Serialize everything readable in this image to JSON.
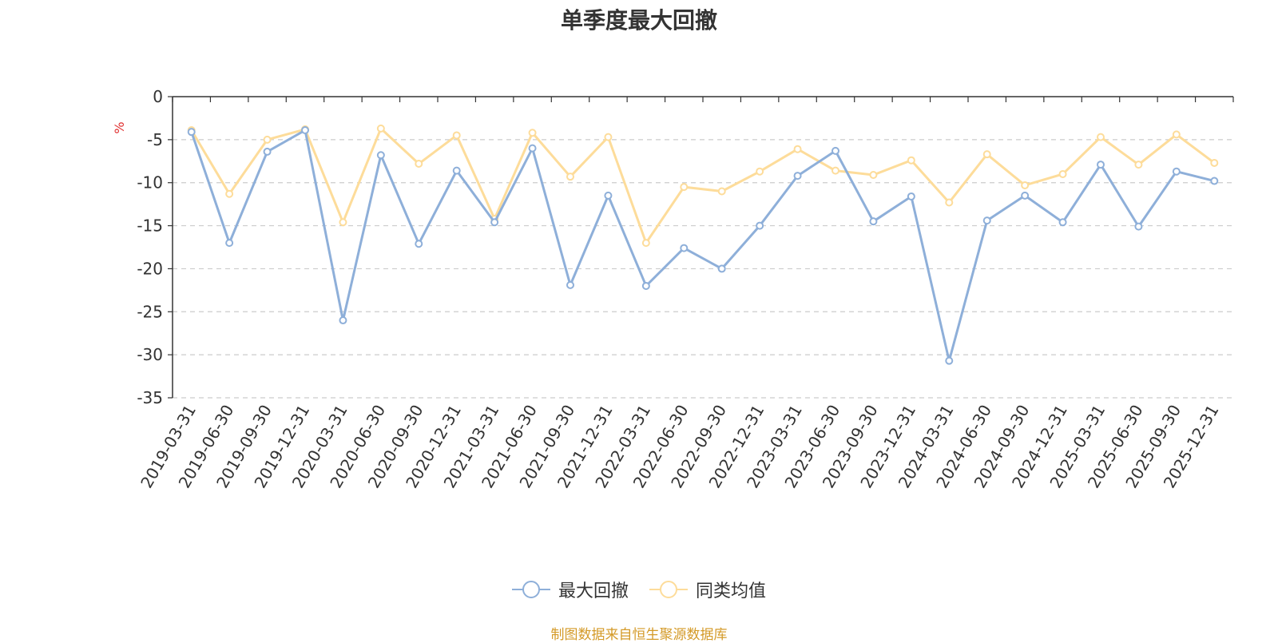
{
  "chart_data": {
    "type": "line",
    "title": "单季度最大回撤",
    "ylabel": "%",
    "xlabel": "",
    "ylim": [
      -35,
      0
    ],
    "yticks": [
      0,
      -5,
      -10,
      -15,
      -20,
      -25,
      -30,
      -35
    ],
    "grid": true,
    "legend_position": "bottom",
    "categories": [
      "2019-03-31",
      "2019-06-30",
      "2019-09-30",
      "2019-12-31",
      "2020-03-31",
      "2020-06-30",
      "2020-09-30",
      "2020-12-31",
      "2021-03-31",
      "2021-06-30",
      "2021-09-30",
      "2021-12-31",
      "2022-03-31",
      "2022-06-30",
      "2022-09-30",
      "2022-12-31",
      "2023-03-31",
      "2023-06-30",
      "2023-09-30",
      "2023-12-31",
      "2024-03-31",
      "2024-06-30",
      "2024-09-30",
      "2024-12-31",
      "2025-03-31",
      "2025-06-30",
      "2025-09-30",
      "2025-12-31"
    ],
    "series": [
      {
        "name": "最大回撤",
        "color": "#8eafd9",
        "values": [
          -4.1,
          -17.0,
          -6.4,
          -3.9,
          -26.0,
          -6.8,
          -17.1,
          -8.6,
          -14.6,
          -6.0,
          -21.9,
          -11.5,
          -22.0,
          -17.6,
          -20.0,
          -15.0,
          -9.2,
          -6.3,
          -14.5,
          -11.6,
          -30.7,
          -14.4,
          -11.5,
          -14.6,
          -7.9,
          -15.1,
          -8.7,
          -9.8
        ]
      },
      {
        "name": "同类均值",
        "color": "#fddc9a",
        "values": [
          -3.9,
          -11.3,
          -5.0,
          -3.8,
          -14.6,
          -3.7,
          -7.8,
          -4.5,
          -14.2,
          -4.2,
          -9.3,
          -4.7,
          -17.0,
          -10.5,
          -11.0,
          -8.7,
          -6.1,
          -8.6,
          -9.1,
          -7.4,
          -12.3,
          -6.7,
          -10.3,
          -9.0,
          -4.7,
          -7.9,
          -4.4,
          -7.7
        ]
      }
    ]
  },
  "legend": {
    "items": [
      {
        "label": "最大回撤",
        "color": "#8eafd9"
      },
      {
        "label": "同类均值",
        "color": "#fddc9a"
      }
    ]
  },
  "colors": {
    "axis": "#333333",
    "grid": "#cccccc",
    "unit": "#e03030",
    "source": "#d49a28"
  },
  "source_note": "制图数据来自恒生聚源数据库"
}
